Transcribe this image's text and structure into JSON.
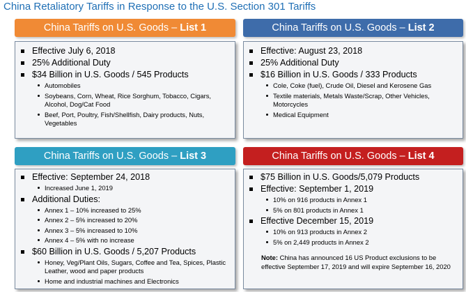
{
  "title": "China Retaliatory Tariffs in Response to the U.S. Section 301 Tariffs",
  "panels": [
    {
      "header_prefix": "China Tariffs on U.S. Goods – ",
      "header_list": "List 1",
      "color": "#f08a35",
      "items": [
        {
          "text": "Effective July 6, 2018",
          "sub": []
        },
        {
          "text": "25% Additional Duty",
          "sub": []
        },
        {
          "text": "$34 Billion in U.S. Goods / 545 Products",
          "sub": [
            "Automobiles",
            "Soybeans, Corn, Wheat, Rice Sorghum, Tobacco, Cigars, Alcohol, Dog/Cat Food",
            "Beef, Port, Poultry, Fish/Shellfish, Dairy products, Nuts, Vegetables"
          ]
        }
      ]
    },
    {
      "header_prefix": "China Tariffs on U.S. Goods – ",
      "header_list": "List 2",
      "color": "#3e6caa",
      "items": [
        {
          "text": "Effective: August 23, 2018",
          "sub": []
        },
        {
          "text": "25% Additional Duty",
          "sub": []
        },
        {
          "text": "$16 Billion in U.S. Goods / 333 Products",
          "sub": [
            "Cole, Coke (fuel), Crude Oil, Diesel and Kerosene Gas",
            "Textile materials, Metals Waste/Scrap, Other Vehicles, Motorcycles",
            "Medical Equipment"
          ]
        }
      ]
    },
    {
      "header_prefix": "China Tariffs on U.S. Goods – ",
      "header_list": "List 3",
      "color": "#2f9fc2",
      "items": [
        {
          "text": "Effective: September 24, 2018",
          "sub": [
            "Increased June 1, 2019"
          ]
        },
        {
          "text": "Additional Duties:",
          "sub": [
            "Annex 1 – 10% increased to 25%",
            "Annex 2 – 5%  increased to 20%",
            "Annex 3 – 5% increased to 10%",
            "Annex 4 – 5% with no increase"
          ]
        },
        {
          "text": "$60 Billion in U.S. Goods / 5,207 Products",
          "sub": [
            "Honey, Veg/Plant Oils, Sugars, Coffee and Tea, Spices, Plastic Leather, wood and paper products",
            "Home and industrial machines and Electronics"
          ]
        }
      ]
    },
    {
      "header_prefix": "China Tariffs on U.S. Goods – ",
      "header_list": "List 4",
      "color": "#c41f1f",
      "items": [
        {
          "text": "$75 Billion in U.S. Goods/5,079 Products",
          "sub": []
        },
        {
          "text": "Effective: September 1, 2019",
          "sub": [
            "10% on 916 products in Annex 1",
            "5% on 801 products in Annex 1"
          ]
        },
        {
          "text": "Effective December 15, 2019",
          "sub": [
            "10% on 913 products in Annex 2",
            "5% on 2,449 products in Annex 2"
          ]
        }
      ],
      "note_label": "Note:",
      "note_text": " China has announced 16 US Product exclusions to be effective September 17, 2019 and will expire September 16, 2020"
    }
  ]
}
